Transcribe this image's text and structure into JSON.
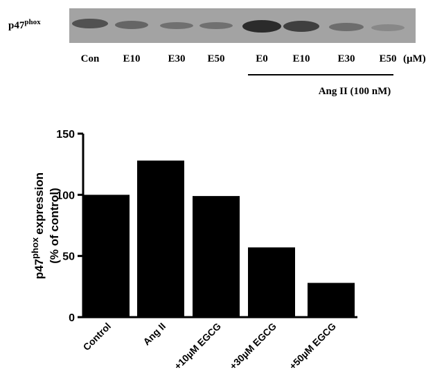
{
  "blot": {
    "protein": "p47",
    "protein_sup": "phox",
    "lanes": [
      "Con",
      "E10",
      "E30",
      "E50",
      "E0",
      "E10",
      "E30",
      "E50"
    ],
    "unit": "(µM)",
    "group_label": "Ang II (100 nM)"
  },
  "chart_data": {
    "type": "bar",
    "ylabel": {
      "base": "p47",
      "sup": "phox",
      "rest": "expression",
      "line2": "(% of control)"
    },
    "categories": [
      "Control",
      "Ang II",
      "+10µM EGCG",
      "+30µM EGCG",
      "+50µM EGCG"
    ],
    "values": [
      100,
      128,
      99,
      57,
      28
    ],
    "color": "#000000",
    "ylim": [
      0,
      150
    ],
    "yticks": [
      0,
      50,
      100,
      150
    ]
  }
}
